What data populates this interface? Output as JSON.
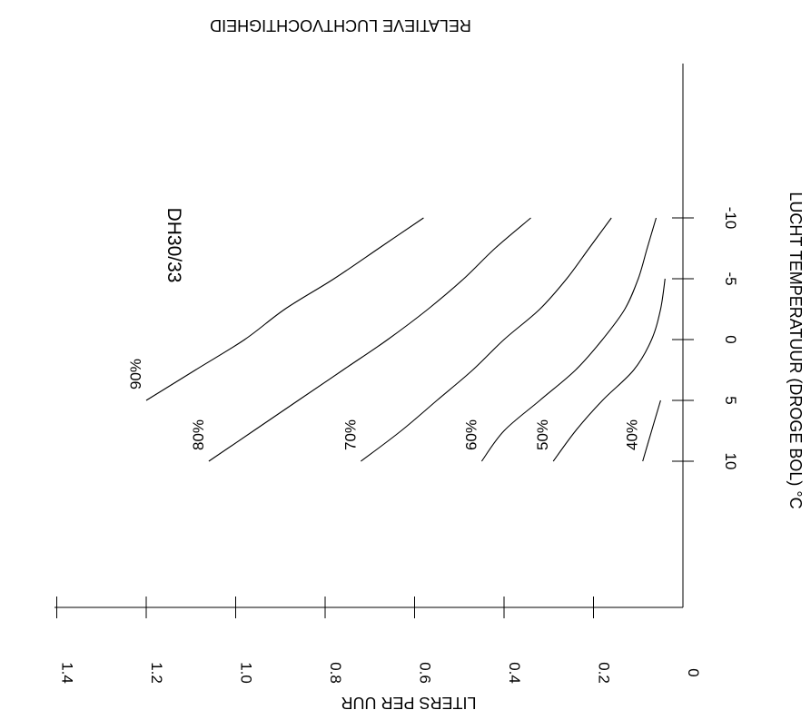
{
  "chart_data": {
    "type": "line",
    "title": "DH30/33",
    "xlabel": "LUCHT TEMPERATUUR (DROGE BOL)  °C",
    "ylabel": "LITERS PER UUR",
    "top_label": "RELATIEVE LUCHTVOCHTIGHEID",
    "xlim": [
      -15,
      15
    ],
    "ylim": [
      0,
      1.4
    ],
    "x_ticks": [
      -10,
      -5,
      0,
      5,
      10
    ],
    "x_tick_labels": [
      "-10",
      "-5",
      "0",
      "5",
      "10"
    ],
    "y_ticks": [
      0,
      0.2,
      0.4,
      0.6,
      0.8,
      1.0,
      1.2,
      1.4
    ],
    "y_tick_labels": [
      "0",
      "0.2",
      "0.4",
      "0.6",
      "0.8",
      "1.0",
      "1.2",
      "1.4"
    ],
    "grid": false,
    "legend": "none",
    "orientation": "rotated-90-clockwise",
    "line_color": "#000000",
    "series": [
      {
        "name": "90%",
        "x": [
          -10,
          -7.5,
          -5,
          -2.5,
          0,
          2.5,
          5
        ],
        "y": [
          0.58,
          0.68,
          0.78,
          0.89,
          0.98,
          1.09,
          1.2
        ]
      },
      {
        "name": "80%",
        "x": [
          -10,
          -7.5,
          -5,
          -2.5,
          0,
          2.5,
          5,
          7.5,
          10
        ],
        "y": [
          0.34,
          0.42,
          0.49,
          0.57,
          0.66,
          0.76,
          0.86,
          0.96,
          1.06
        ]
      },
      {
        "name": "70%",
        "x": [
          -10,
          -7.5,
          -5,
          -2.5,
          0,
          2.5,
          5,
          7.5,
          10
        ],
        "y": [
          0.16,
          0.21,
          0.26,
          0.32,
          0.4,
          0.47,
          0.55,
          0.63,
          0.72
        ]
      },
      {
        "name": "60%",
        "x": [
          -10,
          -7.5,
          -5,
          -2.5,
          0,
          2.5,
          5,
          7.5,
          10
        ],
        "y": [
          0.06,
          0.08,
          0.1,
          0.13,
          0.18,
          0.24,
          0.32,
          0.4,
          0.45
        ]
      },
      {
        "name": "50%",
        "x": [
          -5,
          -2.5,
          0,
          2.5,
          5,
          7.5,
          10
        ],
        "y": [
          0.04,
          0.05,
          0.07,
          0.11,
          0.18,
          0.24,
          0.29
        ]
      },
      {
        "name": "40%",
        "x": [
          5,
          7.5,
          10
        ],
        "y": [
          0.05,
          0.07,
          0.09
        ]
      }
    ]
  }
}
